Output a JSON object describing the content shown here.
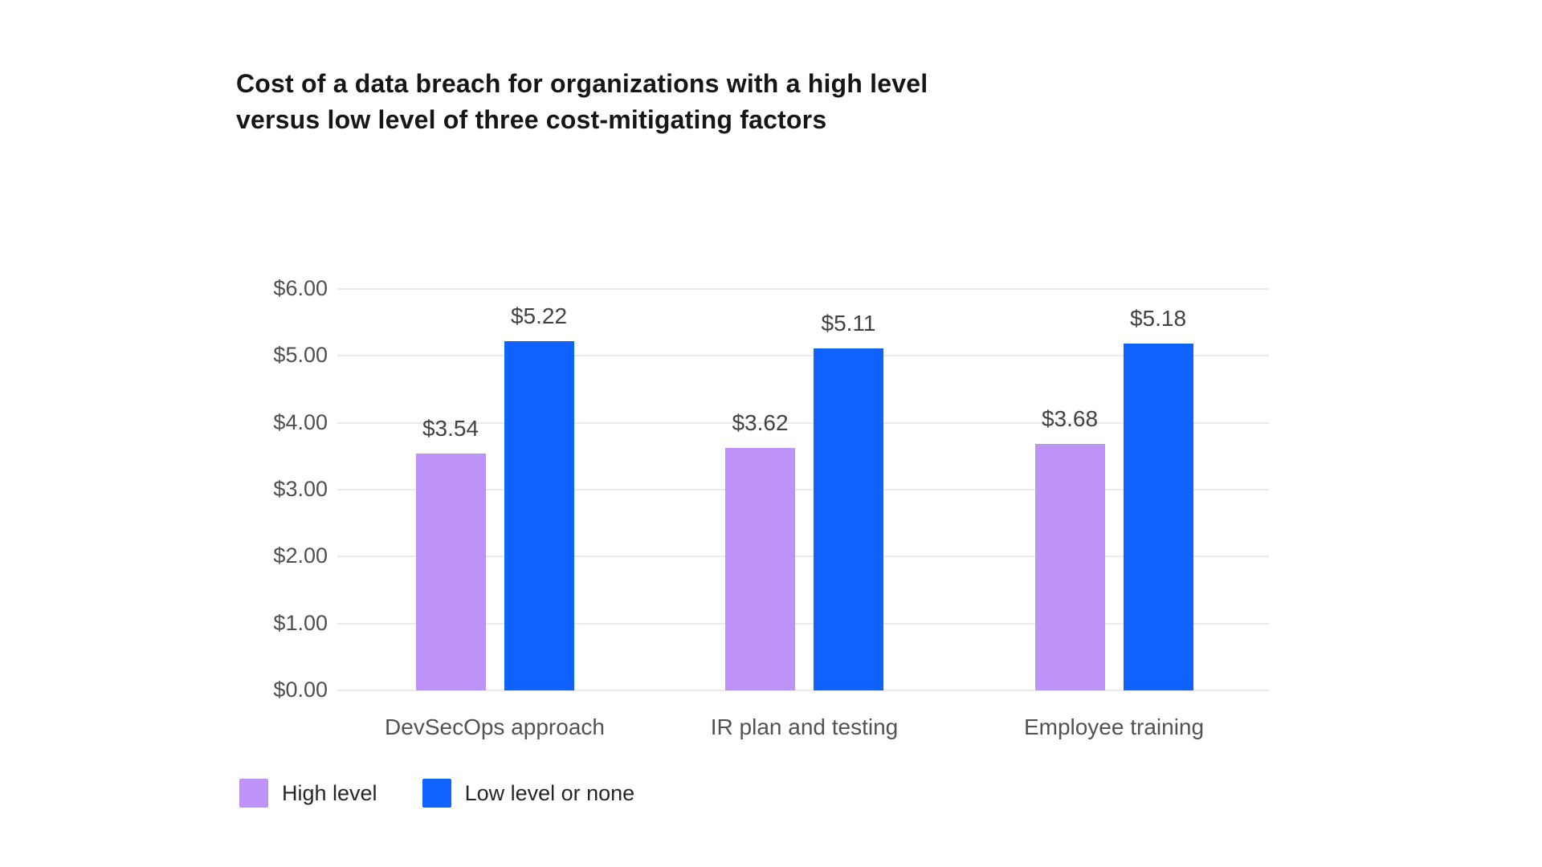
{
  "title": {
    "line1": "Cost of a data breach for organizations with a high level",
    "line2": "versus low level of three cost-mitigating factors"
  },
  "chart_data": {
    "type": "bar",
    "title": "Cost of a data breach for organizations with a high level versus low level of three cost-mitigating factors",
    "categories": [
      "DevSecOps approach",
      "IR plan and testing",
      "Employee training"
    ],
    "series": [
      {
        "name": "High level",
        "color": "#BD93F8",
        "values": [
          3.54,
          3.62,
          3.68
        ]
      },
      {
        "name": "Low level or none",
        "color": "#1062FE",
        "values": [
          5.22,
          5.11,
          5.18
        ]
      }
    ],
    "value_prefix": "$",
    "data_labels": [
      [
        "$3.54",
        "$3.62",
        "$3.68"
      ],
      [
        "$5.22",
        "$5.11",
        "$5.18"
      ]
    ],
    "xlabel": "",
    "ylabel": "",
    "y_axis": {
      "min": 0,
      "max": 6,
      "tick_step": 1,
      "tick_labels": [
        "$0.00",
        "$1.00",
        "$2.00",
        "$3.00",
        "$4.00",
        "$5.00",
        "$6.00"
      ]
    },
    "grid": "horizontal",
    "gridline_color": "#ebebeb",
    "legend_position": "bottom-left",
    "background": "#ffffff"
  }
}
